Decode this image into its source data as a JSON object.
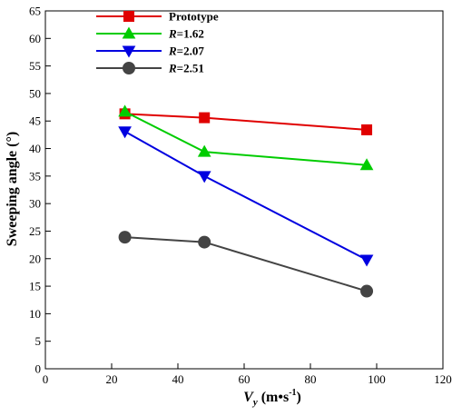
{
  "chart_data": {
    "type": "line",
    "title": "",
    "xlabel": {
      "main": "V",
      "sub": "y",
      "unit_open": " (m•s",
      "unit_sup": "-1",
      "unit_close": ")"
    },
    "ylabel": "Sweeping angle (°)",
    "xlim": [
      0,
      120
    ],
    "ylim": [
      0,
      65
    ],
    "xticks": [
      0,
      20,
      40,
      60,
      80,
      100,
      120
    ],
    "yticks": [
      0,
      5,
      10,
      15,
      20,
      25,
      30,
      35,
      40,
      45,
      50,
      55,
      60,
      65
    ],
    "xtick_labels": [
      "0",
      "20",
      "40",
      "60",
      "80",
      "100",
      "120"
    ],
    "ytick_labels": [
      "0",
      "5",
      "10",
      "15",
      "20",
      "25",
      "30",
      "35",
      "40",
      "45",
      "50",
      "55",
      "60",
      "65"
    ],
    "grid": false,
    "legend_position": "top-left",
    "series": [
      {
        "name": "Prototype",
        "name_italic": "",
        "name_rest": "Prototype",
        "color": "#e00000",
        "marker": "square",
        "x": [
          24,
          48,
          97
        ],
        "y": [
          46.3,
          45.6,
          43.4
        ]
      },
      {
        "name": "R=1.62",
        "name_italic": "R",
        "name_rest": "=1.62",
        "color": "#00cc00",
        "marker": "triangle-up",
        "x": [
          24,
          48,
          97
        ],
        "y": [
          46.7,
          39.4,
          37.0
        ]
      },
      {
        "name": "R=2.07",
        "name_italic": "R",
        "name_rest": "=2.07",
        "color": "#0000e0",
        "marker": "triangle-down",
        "x": [
          24,
          48,
          97
        ],
        "y": [
          43.1,
          35.0,
          19.8
        ]
      },
      {
        "name": "R=2.51",
        "name_italic": "R",
        "name_rest": "=2.51",
        "color": "#444444",
        "marker": "circle",
        "x": [
          24,
          48,
          97
        ],
        "y": [
          23.9,
          23.0,
          14.1
        ]
      }
    ]
  }
}
